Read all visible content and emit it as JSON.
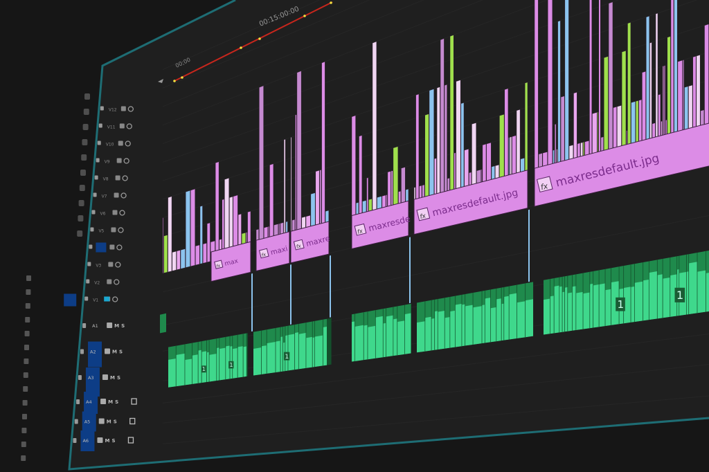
{
  "app": "timeline",
  "ruler": {
    "timecode_start": "00;00",
    "timecode_mid": "00:15:00:00"
  },
  "video_tracks": [
    {
      "label": "V12"
    },
    {
      "label": "V11"
    },
    {
      "label": "V10"
    },
    {
      "label": "V9"
    },
    {
      "label": "V8"
    },
    {
      "label": "V7"
    },
    {
      "label": "V6"
    },
    {
      "label": "V5"
    },
    {
      "label": "V4"
    },
    {
      "label": "V3"
    },
    {
      "label": "V2"
    },
    {
      "label": "V1"
    }
  ],
  "audio_tracks": [
    {
      "label": "A1",
      "mute": "M",
      "solo": "S",
      "voice_icon": ""
    },
    {
      "label": "A2",
      "mute": "M",
      "solo": "S",
      "voice_icon": ""
    },
    {
      "label": "A3",
      "mute": "M",
      "solo": "S",
      "voice_icon": ""
    },
    {
      "label": "A4",
      "mute": "M",
      "solo": "S",
      "voice_icon": "mic-icon"
    },
    {
      "label": "A5",
      "mute": "M",
      "solo": "S",
      "voice_icon": "mic-icon"
    },
    {
      "label": "A6",
      "mute": "M",
      "solo": "S",
      "voice_icon": "mic-icon"
    }
  ],
  "video_clips": [
    {
      "name": "max",
      "fx": "fx"
    },
    {
      "name": "maxi",
      "fx": "fx"
    },
    {
      "name": "maxre",
      "fx": "fx"
    },
    {
      "name": "maxresde",
      "fx": "fx"
    },
    {
      "name": "maxresdefault.jpg",
      "fx": "fx"
    },
    {
      "name": "maxresdefault.jpg",
      "fx": "fx"
    }
  ],
  "audio_clips": [
    {
      "badges": [
        "1",
        "1"
      ]
    },
    {
      "badges": [
        "1"
      ]
    },
    {
      "badges": []
    },
    {
      "badges": []
    },
    {
      "badges": [
        "1",
        "1"
      ]
    }
  ],
  "colors": {
    "background": "#161616",
    "panel": "#1f1f1f",
    "panel_border": "#1e6d74",
    "video_clip": "#dc8ce6",
    "video_clip_label": "#7b2c8c",
    "audio_clip": "#3fd88c",
    "audio_clip_dark": "#1f8a4c",
    "track_target": "#0d3d86",
    "ruler_line": "#c8261c",
    "ruler_marker": "#f0e040",
    "accent_blue": "#8cc4ee",
    "accent_green": "#9fe04c",
    "header_icon": "#9a9a9a"
  }
}
